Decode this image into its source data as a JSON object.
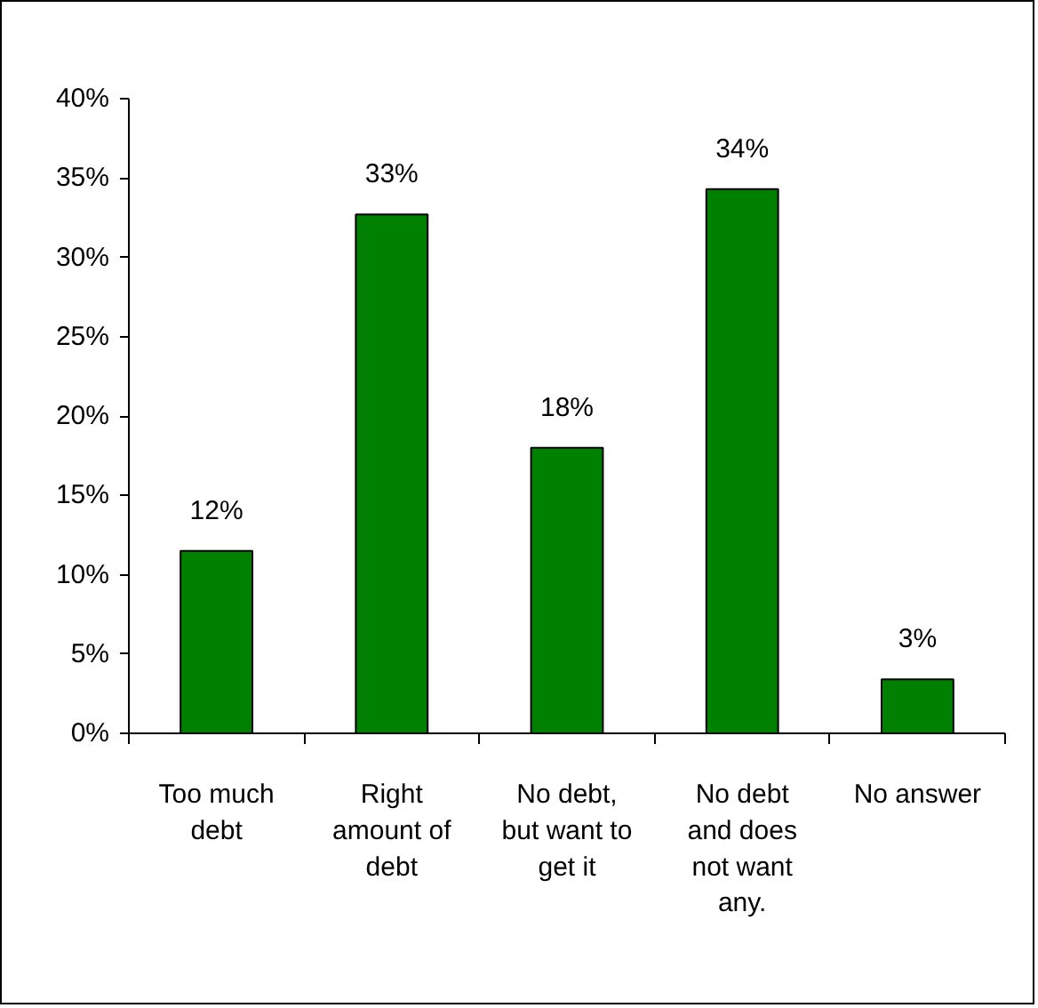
{
  "chart_data": {
    "type": "bar",
    "categories": [
      "Too much debt",
      "Right amount of debt",
      "No debt, but want to get it",
      "No debt and does not want any.",
      "No answer"
    ],
    "values": [
      11.5,
      32.7,
      18.0,
      34.3,
      3.4
    ],
    "value_labels": [
      "12%",
      "33%",
      "18%",
      "34%",
      "3%"
    ],
    "color": "#008000",
    "ylim": [
      0,
      40
    ],
    "yticks": [
      {
        "value": 0,
        "label": "0%"
      },
      {
        "value": 5,
        "label": "5%"
      },
      {
        "value": 10,
        "label": "10%"
      },
      {
        "value": 15,
        "label": "15%"
      },
      {
        "value": 20,
        "label": "20%"
      },
      {
        "value": 25,
        "label": "25%"
      },
      {
        "value": 30,
        "label": "30%"
      },
      {
        "value": 35,
        "label": "35%"
      },
      {
        "value": 40,
        "label": "40%"
      }
    ],
    "grid": false
  }
}
